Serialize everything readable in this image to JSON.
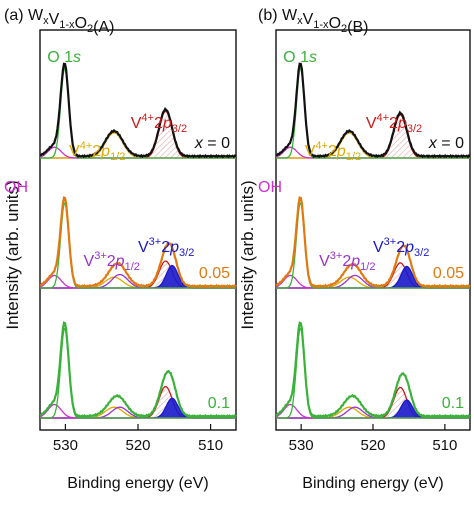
{
  "figure": {
    "ylabel": "Intensity (arb. units)",
    "xlabel": "Binding energy (eV)"
  },
  "colors": {
    "black_total": "#111111",
    "dark_green_total": "#1a7a1a",
    "orange_total": "#e07a10",
    "green_total": "#3ab23a",
    "O1s": "#3ab23a",
    "OH": "#cc33cc",
    "V4_peak": "#cc1a1a",
    "V4_half": "#e0a800",
    "V3": "#1a1acc",
    "V3_half": "#9933cc",
    "hatch": "#d9a0a0"
  },
  "chart_data": [
    {
      "type": "line",
      "panel_label": "(a) W",
      "panel_sub1": "x",
      "panel_mid": "V",
      "panel_sub2": "1-x",
      "panel_mid2": "O",
      "panel_sub3": "2",
      "panel_end": "(A)",
      "xlabel": "Binding energy (eV)",
      "ylabel": "Intensity (arb. units)",
      "xlim": [
        533.5,
        506.5
      ],
      "x_reversed": true,
      "x_ticks": [
        530,
        520,
        510
      ],
      "x_tick_labels": [
        "530",
        "520",
        "510"
      ],
      "series": [
        {
          "name": "x = 0",
          "offset": 2,
          "O1s": 1.0,
          "V4_half": 0.28,
          "V4_peak": 0.52,
          "V3": 0.0,
          "V3_half": 0.0,
          "OH": 0.12,
          "color": "#111111"
        },
        {
          "name": "0.05",
          "offset": 1,
          "O1s": 0.95,
          "V4_half": 0.12,
          "V4_peak": 0.3,
          "V3": 0.25,
          "V3_half": 0.15,
          "OH": 0.14,
          "color": "#e07a10"
        },
        {
          "name": "0.1",
          "offset": 0,
          "O1s": 1.0,
          "V4_half": 0.12,
          "V4_peak": 0.35,
          "V3": 0.22,
          "V3_half": 0.12,
          "OH": 0.15,
          "color": "#3ab23a"
        }
      ],
      "labels": {
        "O1s": "O 1",
        "O1s_s": "s",
        "V4_32": "V",
        "V4_32_sup": "4+",
        "V4_32_p": "2",
        "V4_32_pi": "p",
        "V4_32_sub": "3/2",
        "V4_12": "V",
        "V4_12_sup": "4+",
        "V4_12_p": "2",
        "V4_12_pi": "p",
        "V4_12_sub": "1/2",
        "V3_32": "V",
        "V3_32_sup": "3+",
        "V3_32_p": "2",
        "V3_32_pi": "p",
        "V3_32_sub": "3/2",
        "V3_12": "V",
        "V3_12_sup": "3+",
        "V3_12_p": "2",
        "V3_12_pi": "p",
        "V3_12_sub": "1/2",
        "OH": "OH",
        "x0": "x = 0",
        "x005": "0.05",
        "x01": "0.1"
      }
    },
    {
      "type": "line",
      "panel_label": "(b) W",
      "panel_sub1": "x",
      "panel_mid": "V",
      "panel_sub2": "1-x",
      "panel_mid2": "O",
      "panel_sub3": "2",
      "panel_end": "(B)",
      "xlabel": "Binding energy (eV)",
      "ylabel": "Intensity (arb. units)",
      "xlim": [
        533.5,
        506.5
      ],
      "x_reversed": true,
      "x_ticks": [
        530,
        520,
        510
      ],
      "x_tick_labels": [
        "530",
        "520",
        "510"
      ],
      "series": [
        {
          "name": "x = 0",
          "offset": 2,
          "O1s": 1.0,
          "V4_half": 0.28,
          "V4_peak": 0.48,
          "V3": 0.0,
          "V3_half": 0.0,
          "OH": 0.12,
          "color": "#111111"
        },
        {
          "name": "0.05",
          "offset": 1,
          "O1s": 0.95,
          "V4_half": 0.12,
          "V4_peak": 0.28,
          "V3": 0.24,
          "V3_half": 0.14,
          "OH": 0.14,
          "color": "#e07a10"
        },
        {
          "name": "0.1",
          "offset": 0,
          "O1s": 1.0,
          "V4_half": 0.12,
          "V4_peak": 0.34,
          "V3": 0.2,
          "V3_half": 0.12,
          "OH": 0.15,
          "color": "#3ab23a"
        }
      ],
      "labels": {
        "O1s": "O 1",
        "O1s_s": "s",
        "V4_32": "V",
        "V4_32_sup": "4+",
        "V4_32_p": "2",
        "V4_32_pi": "p",
        "V4_32_sub": "3/2",
        "V4_12": "V",
        "V4_12_sup": "4+",
        "V4_12_p": "2",
        "V4_12_pi": "p",
        "V4_12_sub": "1/2",
        "V3_32": "V",
        "V3_32_sup": "3+",
        "V3_32_p": "2",
        "V3_32_pi": "p",
        "V3_32_sub": "3/2",
        "V3_12": "V",
        "V3_12_sup": "3+",
        "V3_12_p": "2",
        "V3_12_pi": "p",
        "V3_12_sub": "1/2",
        "OH": "OH",
        "x0": "x = 0",
        "x005": "0.05",
        "x01": "0.1"
      }
    }
  ]
}
